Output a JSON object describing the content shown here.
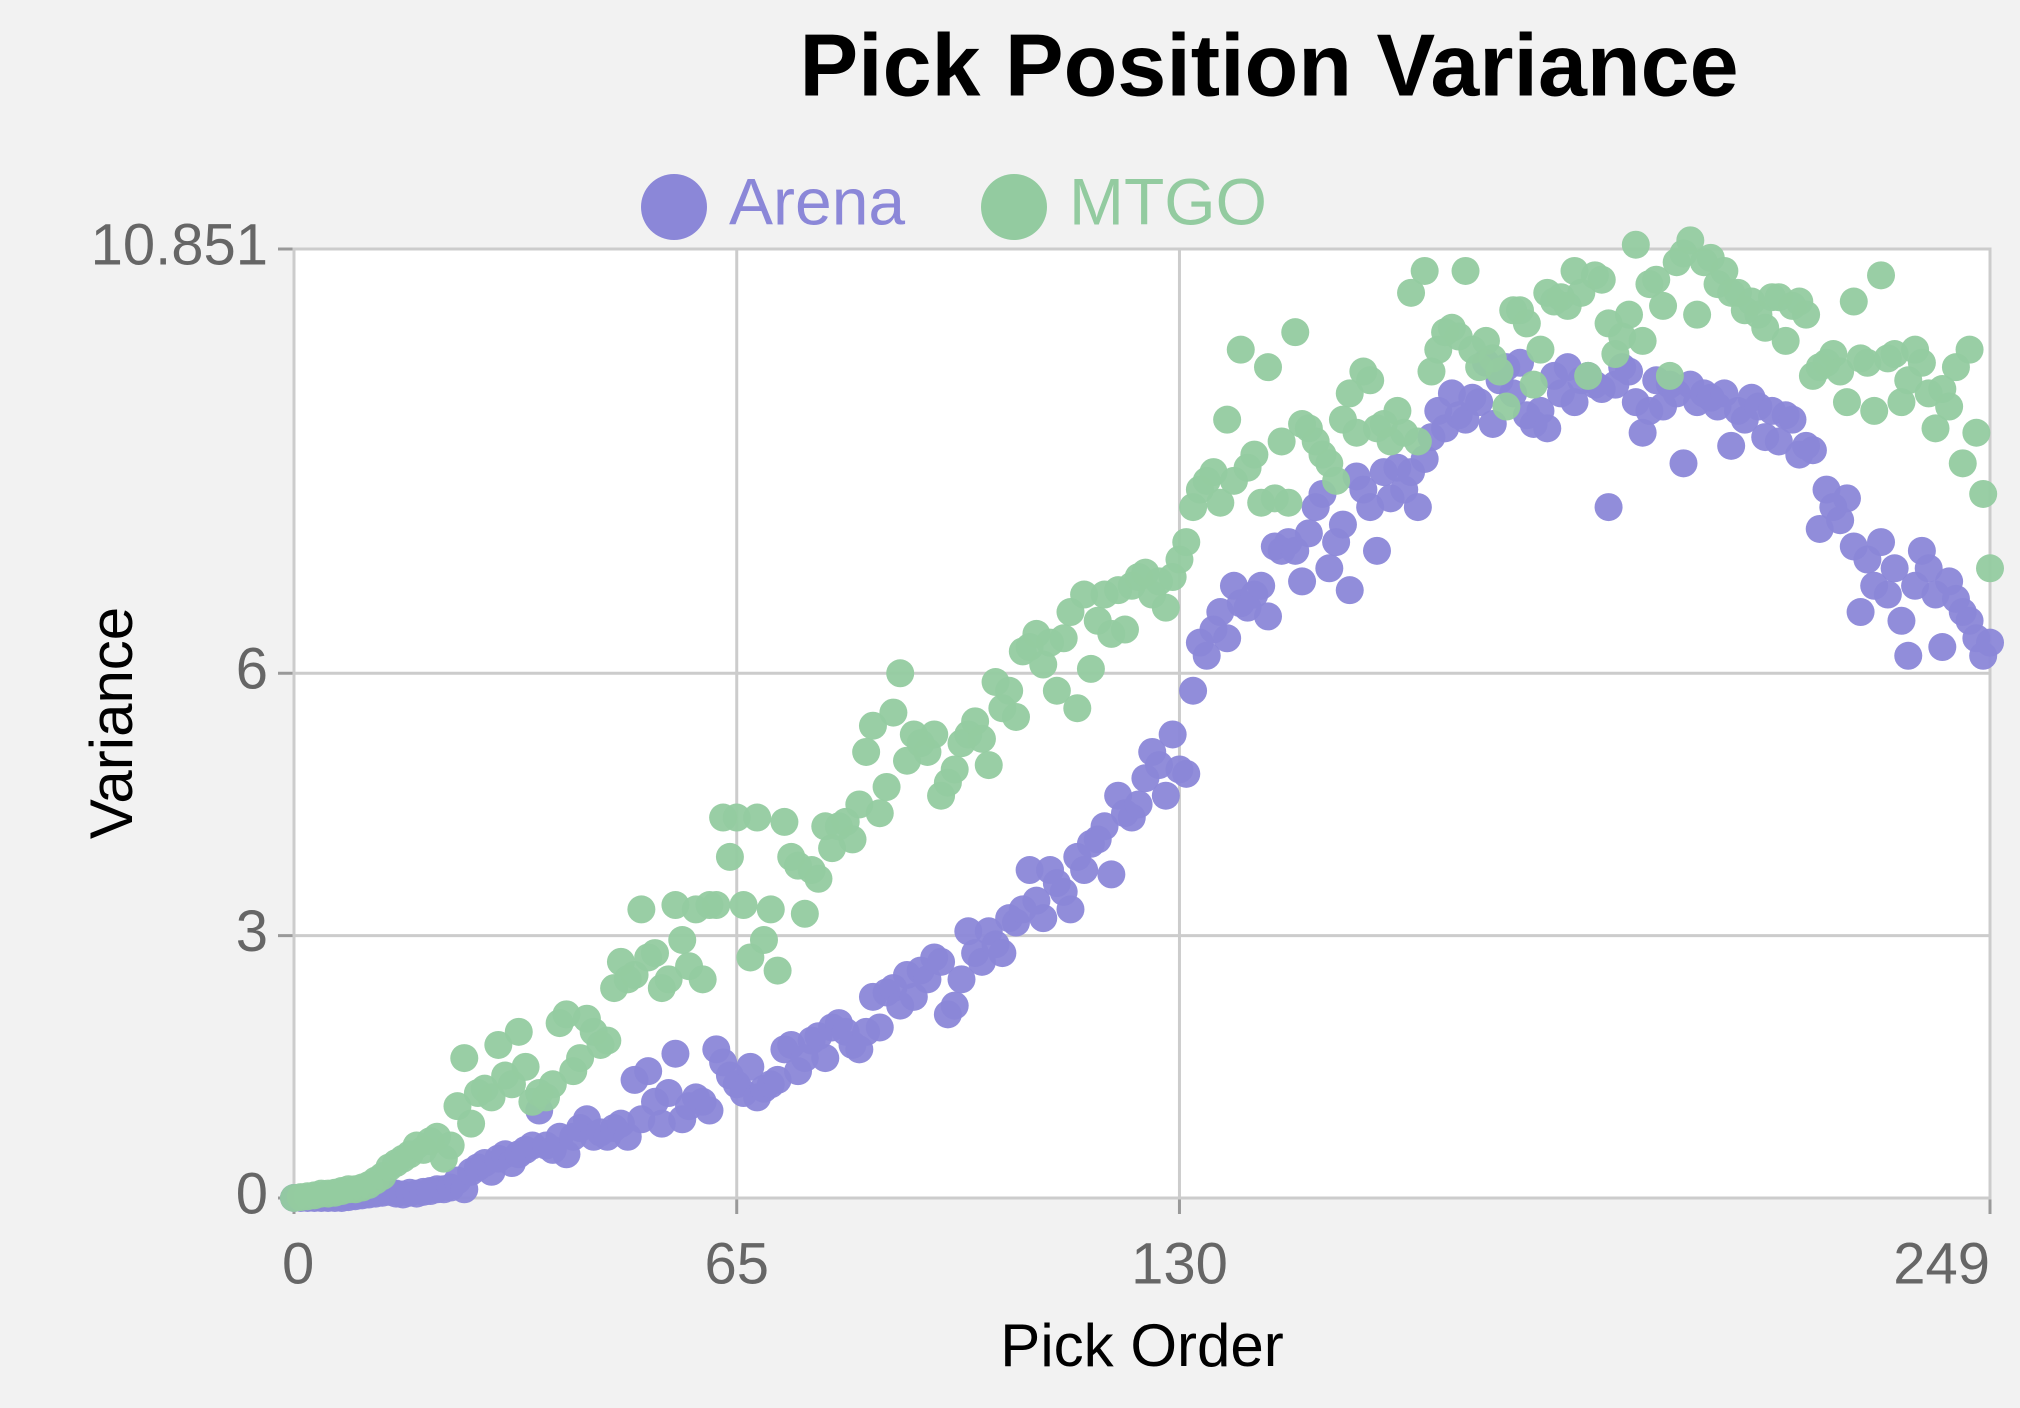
{
  "chart_data": {
    "type": "scatter",
    "title": "Pick Position Variance",
    "x_label": "Pick Order",
    "y_label": "Variance",
    "xlim": [
      0,
      249
    ],
    "xticks": [
      0,
      65,
      130,
      249
    ],
    "ylim": [
      0,
      10.851
    ],
    "yticks": [
      0,
      3,
      6,
      10.851
    ],
    "grid": true,
    "legend": "top",
    "x": [
      0,
      1,
      2,
      3,
      4,
      5,
      6,
      7,
      8,
      9,
      10,
      11,
      12,
      13,
      14,
      15,
      16,
      17,
      18,
      19,
      20,
      21,
      22,
      23,
      24,
      25,
      26,
      27,
      28,
      29,
      30,
      31,
      32,
      33,
      34,
      35,
      36,
      37,
      38,
      39,
      40,
      41,
      42,
      43,
      44,
      45,
      46,
      47,
      48,
      49,
      50,
      51,
      52,
      53,
      54,
      55,
      56,
      57,
      58,
      59,
      60,
      61,
      62,
      63,
      64,
      65,
      66,
      67,
      68,
      69,
      70,
      71,
      72,
      73,
      74,
      75,
      76,
      77,
      78,
      79,
      80,
      81,
      82,
      83,
      84,
      85,
      86,
      87,
      88,
      89,
      90,
      91,
      92,
      93,
      94,
      95,
      96,
      97,
      98,
      99,
      100,
      101,
      102,
      103,
      104,
      105,
      106,
      107,
      108,
      109,
      110,
      111,
      112,
      113,
      114,
      115,
      116,
      117,
      118,
      119,
      120,
      121,
      122,
      123,
      124,
      125,
      126,
      127,
      128,
      129,
      130,
      131,
      132,
      133,
      134,
      135,
      136,
      137,
      138,
      139,
      140,
      141,
      142,
      143,
      144,
      145,
      146,
      147,
      148,
      149,
      150,
      151,
      152,
      153,
      154,
      155,
      156,
      157,
      158,
      159,
      160,
      161,
      162,
      163,
      164,
      165,
      166,
      167,
      168,
      169,
      170,
      171,
      172,
      173,
      174,
      175,
      176,
      177,
      178,
      179,
      180,
      181,
      182,
      183,
      184,
      185,
      186,
      187,
      188,
      189,
      190,
      191,
      192,
      193,
      194,
      195,
      196,
      197,
      198,
      199,
      200,
      201,
      202,
      203,
      204,
      205,
      206,
      207,
      208,
      209,
      210,
      211,
      212,
      213,
      214,
      215,
      216,
      217,
      218,
      219,
      220,
      221,
      222,
      223,
      224,
      225,
      226,
      227,
      228,
      229,
      230,
      231,
      232,
      233,
      234,
      235,
      236,
      237,
      238,
      239,
      240,
      241,
      242,
      243,
      244,
      245,
      246,
      247,
      248,
      249
    ],
    "series": [
      {
        "name": "Arena",
        "color": "#8b87d8",
        "values": [
          0,
          0,
          0,
          0,
          0,
          0,
          0,
          0,
          0.01,
          0.02,
          0.03,
          0.04,
          0.05,
          0.06,
          0.07,
          0.05,
          0.04,
          0.06,
          0.05,
          0.07,
          0.08,
          0.1,
          0.1,
          0.12,
          0.2,
          0.1,
          0.3,
          0.35,
          0.4,
          0.3,
          0.45,
          0.5,
          0.4,
          0.5,
          0.55,
          0.6,
          1,
          0.6,
          0.55,
          0.7,
          0.5,
          0.7,
          0.8,
          0.9,
          0.7,
          0.75,
          0.7,
          0.8,
          0.85,
          0.7,
          1.35,
          0.9,
          1.45,
          1.1,
          0.85,
          1.2,
          1.65,
          0.9,
          1.05,
          1.15,
          1.1,
          1.0,
          1.7,
          1.55,
          1.4,
          1.3,
          1.2,
          1.5,
          1.15,
          1.25,
          1.3,
          1.35,
          1.7,
          1.75,
          1.45,
          1.6,
          1.8,
          1.85,
          1.6,
          1.95,
          2.0,
          1.9,
          1.75,
          1.7,
          1.9,
          2.3,
          1.95,
          2.35,
          2.4,
          2.2,
          2.55,
          2.3,
          2.6,
          2.5,
          2.75,
          2.7,
          2.1,
          2.2,
          2.5,
          3.05,
          2.8,
          2.7,
          3.05,
          2.9,
          2.8,
          3.2,
          3.15,
          3.3,
          3.75,
          3.4,
          3.2,
          3.75,
          3.6,
          3.5,
          3.3,
          3.9,
          3.75,
          4.05,
          4.1,
          4.25,
          3.7,
          4.6,
          4.4,
          4.35,
          4.5,
          4.8,
          5.1,
          4.95,
          4.6,
          5.3,
          4.9,
          4.85,
          5.8,
          6.35,
          6.2,
          6.5,
          6.7,
          6.4,
          7.0,
          6.8,
          6.75,
          6.9,
          7.0,
          6.65,
          7.45,
          7.4,
          7.5,
          7.4,
          7.05,
          7.6,
          7.9,
          8.05,
          7.2,
          7.5,
          7.7,
          6.95,
          8.25,
          8.1,
          7.9,
          7.4,
          8.3,
          8.0,
          8.35,
          8.1,
          8.3,
          7.9,
          8.45,
          8.7,
          9.0,
          8.8,
          9.2,
          8.95,
          8.9,
          9.15,
          9.1,
          9.55,
          8.85,
          9.35,
          9.5,
          9.2,
          9.55,
          8.95,
          8.85,
          9.0,
          8.8,
          9.4,
          9.2,
          9.5,
          9.1,
          9.35,
          9.4,
          9.3,
          9.25,
          7.9,
          9.3,
          9.5,
          9.45,
          9.1,
          8.75,
          9.0,
          9.35,
          9.05,
          9.3,
          9.2,
          8.4,
          9.3,
          9.1,
          9.2,
          9.15,
          9.05,
          9.2,
          8.6,
          9.0,
          8.9,
          9.15,
          9.05,
          8.7,
          9.0,
          8.65,
          8.95,
          8.9,
          8.5,
          8.6,
          8.55,
          7.65,
          8.1,
          7.9,
          7.75,
          8.0,
          7.45,
          6.7,
          7.3,
          7.0,
          7.5,
          6.9,
          7.2,
          6.6,
          6.2,
          7.0,
          7.4,
          7.2,
          6.9,
          6.3,
          7.05,
          6.85,
          6.7,
          6.6,
          6.4,
          6.2,
          6.35
        ]
      },
      {
        "name": "MTGO",
        "color": "#93cba0",
        "values": [
          0,
          0.01,
          0.02,
          0.03,
          0.05,
          0.05,
          0.06,
          0.08,
          0.1,
          0.1,
          0.12,
          0.15,
          0.2,
          0.25,
          0.35,
          0.4,
          0.45,
          0.5,
          0.6,
          0.55,
          0.65,
          0.7,
          0.45,
          0.6,
          1.05,
          1.6,
          0.85,
          1.2,
          1.25,
          1.15,
          1.75,
          1.4,
          1.3,
          1.9,
          1.5,
          1.1,
          1.2,
          1.15,
          1.3,
          2.0,
          2.1,
          1.45,
          1.6,
          2.05,
          1.9,
          1.75,
          1.8,
          2.4,
          2.7,
          2.5,
          2.55,
          3.3,
          2.75,
          2.8,
          2.4,
          2.5,
          3.35,
          2.95,
          2.65,
          3.3,
          2.5,
          3.35,
          3.35,
          4.35,
          3.9,
          4.35,
          3.35,
          2.75,
          4.35,
          2.95,
          3.3,
          2.6,
          4.3,
          3.9,
          3.8,
          3.25,
          3.75,
          3.65,
          4.25,
          4.0,
          4.25,
          4.3,
          4.1,
          4.5,
          5.1,
          5.4,
          4.4,
          4.7,
          5.55,
          6.0,
          5.0,
          5.3,
          5.2,
          5.1,
          5.3,
          4.6,
          4.75,
          4.9,
          5.2,
          5.3,
          5.45,
          5.25,
          4.95,
          5.9,
          5.6,
          5.8,
          5.5,
          6.25,
          6.3,
          6.45,
          6.1,
          6.35,
          5.8,
          6.4,
          6.7,
          5.6,
          6.9,
          6.05,
          6.6,
          6.9,
          6.45,
          6.95,
          6.5,
          7.0,
          7.1,
          7.15,
          6.9,
          7.05,
          6.75,
          7.1,
          7.3,
          7.5,
          7.9,
          8.1,
          8.2,
          8.3,
          7.95,
          8.9,
          8.2,
          9.7,
          8.35,
          8.5,
          7.95,
          9.5,
          8.0,
          8.65,
          7.95,
          9.9,
          8.85,
          8.8,
          8.65,
          8.5,
          8.4,
          8.2,
          8.9,
          9.2,
          8.75,
          9.45,
          9.35,
          8.8,
          8.85,
          8.65,
          9.0,
          8.75,
          10.35,
          8.65,
          10.6,
          9.45,
          9.7,
          9.9,
          9.95,
          9.85,
          10.6,
          9.7,
          9.5,
          9.8,
          9.6,
          9.45,
          9.05,
          10.15,
          10.15,
          10.0,
          9.3,
          9.7,
          10.35,
          10.25,
          10.3,
          10.2,
          10.6,
          10.35,
          9.4,
          10.55,
          10.5,
          10.0,
          9.65,
          9.85,
          10.1,
          10.9,
          9.8,
          10.45,
          10.5,
          10.2,
          9.4,
          10.7,
          10.8,
          10.95,
          10.1,
          10.7,
          10.75,
          10.45,
          10.6,
          10.35,
          10.35,
          10.15,
          10.25,
          10.1,
          9.95,
          10.3,
          10.3,
          9.8,
          10.2,
          10.25,
          10.1,
          9.4,
          9.5,
          9.55,
          9.65,
          9.45,
          9.1,
          10.25,
          9.6,
          9.55,
          9.0,
          10.55,
          9.6,
          9.65,
          9.1,
          9.35,
          9.7,
          9.55,
          9.2,
          8.8,
          9.25,
          9.05,
          9.5,
          8.4,
          9.7,
          8.75,
          8.05,
          7.2
        ]
      }
    ]
  }
}
